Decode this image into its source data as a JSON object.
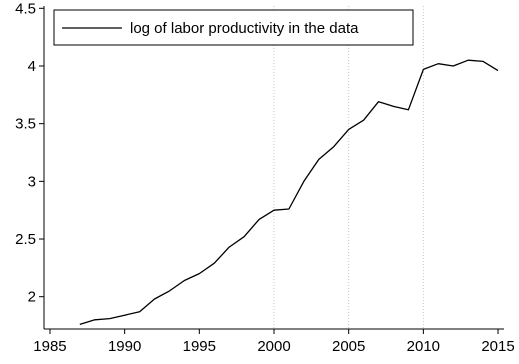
{
  "chart_data": {
    "type": "line",
    "title": "",
    "xlabel": "",
    "ylabel": "",
    "xlim": [
      1984.6,
      2015.4
    ],
    "ylim": [
      1.72,
      4.52
    ],
    "grid": "vertical dotted at 2000, 2005, 2010",
    "legend_position": "top-left",
    "x_ticks": [
      {
        "value": 1985,
        "label": "1985"
      },
      {
        "value": 1990,
        "label": "1990"
      },
      {
        "value": 1995,
        "label": "1995"
      },
      {
        "value": 2000,
        "label": "2000"
      },
      {
        "value": 2005,
        "label": "2005"
      },
      {
        "value": 2010,
        "label": "2010"
      },
      {
        "value": 2015,
        "label": "2015"
      }
    ],
    "y_ticks": [
      {
        "value": 2,
        "label": "2"
      },
      {
        "value": 2.5,
        "label": "2.5"
      },
      {
        "value": 3,
        "label": "3"
      },
      {
        "value": 3.5,
        "label": "3.5"
      },
      {
        "value": 4,
        "label": "4"
      },
      {
        "value": 4.5,
        "label": "4.5"
      }
    ],
    "series": [
      {
        "name": "log of labor productivity in the data",
        "color": "#000000",
        "x": [
          1987,
          1988,
          1989,
          1990,
          1991,
          1992,
          1993,
          1994,
          1995,
          1996,
          1997,
          1998,
          1999,
          2000,
          2001,
          2002,
          2003,
          2004,
          2005,
          2006,
          2007,
          2008,
          2009,
          2010,
          2011,
          2012,
          2013,
          2014,
          2015
        ],
        "y": [
          1.76,
          1.8,
          1.81,
          1.84,
          1.87,
          1.98,
          2.05,
          2.14,
          2.2,
          2.29,
          2.43,
          2.52,
          2.67,
          2.75,
          2.76,
          3.0,
          3.19,
          3.3,
          3.45,
          3.53,
          3.69,
          3.65,
          3.62,
          3.97,
          4.02,
          4.0,
          4.05,
          4.04,
          3.96
        ]
      }
    ]
  }
}
